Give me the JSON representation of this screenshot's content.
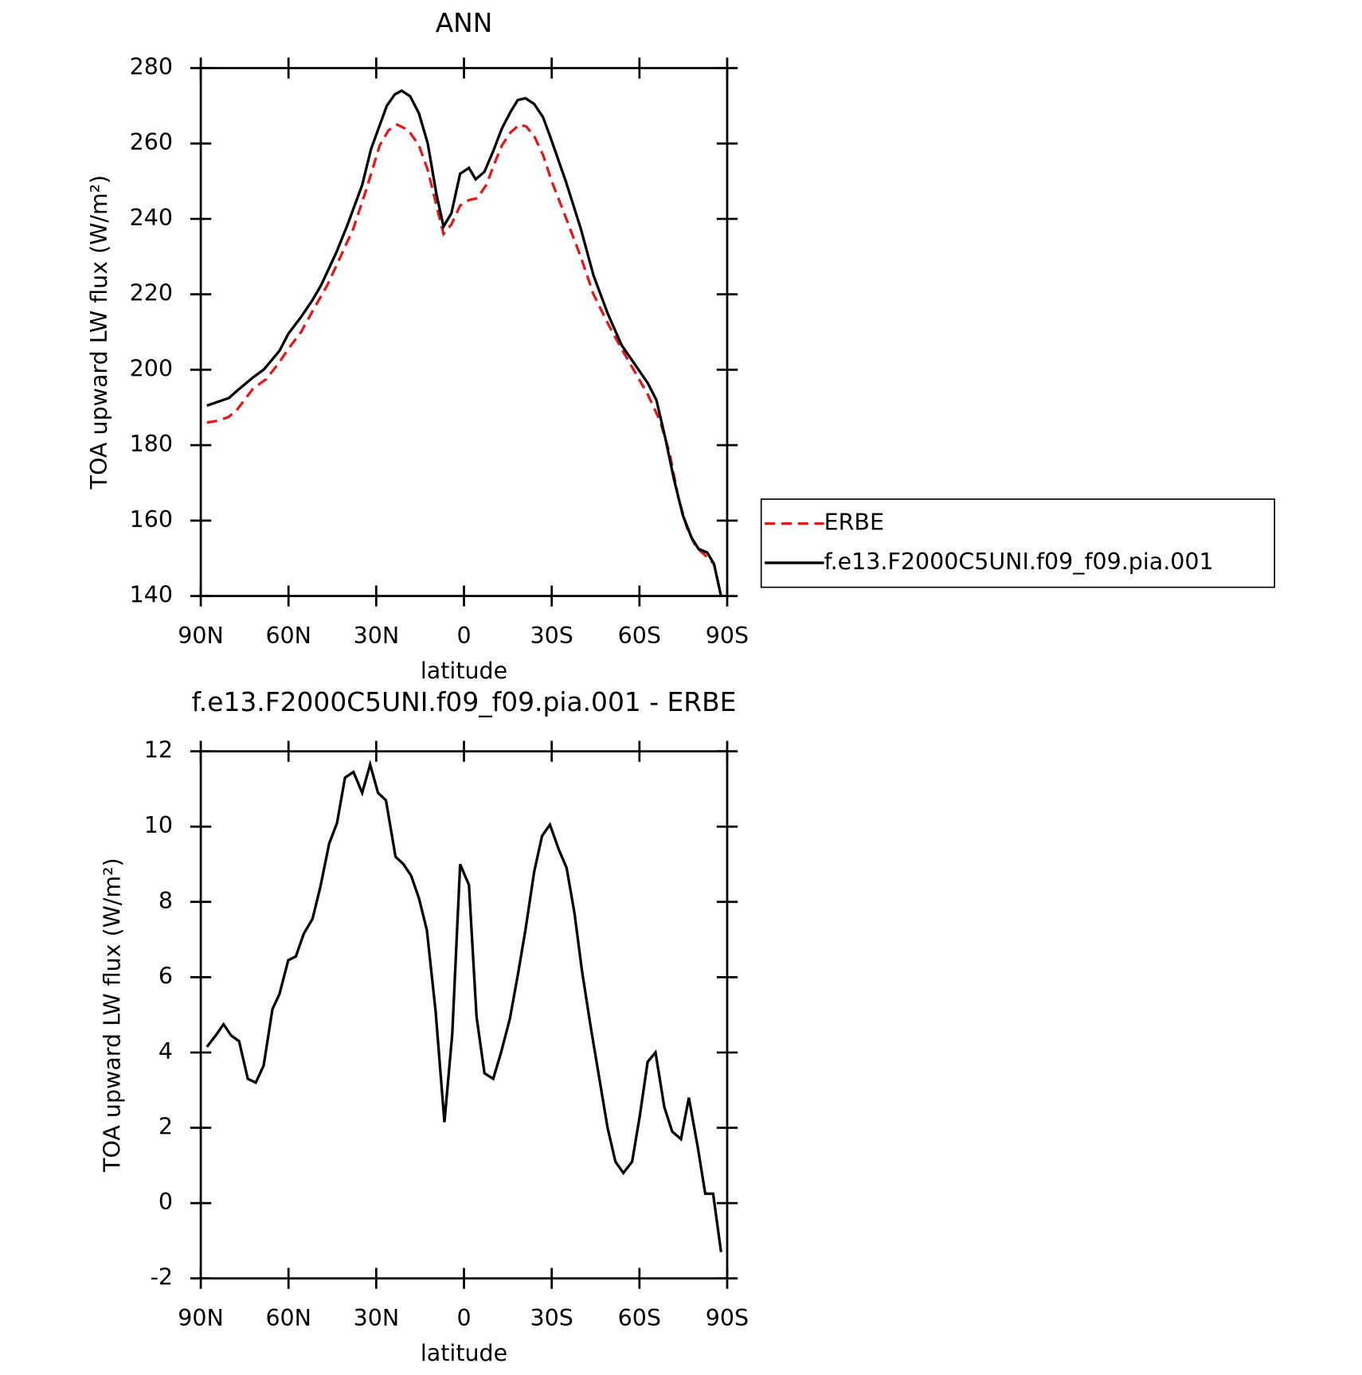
{
  "chart_data": [
    {
      "type": "line",
      "title": "ANN",
      "xlabel": "latitude",
      "ylabel": "TOA upward LW flux (W/m²)",
      "xlim": [
        90,
        -90
      ],
      "xticks": [
        {
          "value": 90,
          "label": "90N"
        },
        {
          "value": 60,
          "label": "60N"
        },
        {
          "value": 30,
          "label": "30N"
        },
        0,
        {
          "value": -30,
          "label": "30S"
        },
        {
          "value": -60,
          "label": "60S"
        },
        {
          "value": -90,
          "label": "90S"
        }
      ],
      "ylim": [
        140,
        280
      ],
      "yticks": [
        140,
        160,
        180,
        200,
        220,
        240,
        260,
        280
      ],
      "legend": "right",
      "series": [
        {
          "name": "ERBE",
          "color": "#e0191b",
          "dash": true,
          "x": [
            87.9,
            84.0,
            80.4,
            77.5,
            72.1,
            67.6,
            63.1,
            60.1,
            55.7,
            51.8,
            46.7,
            42.2,
            37.8,
            33.3,
            28.8,
            25.8,
            22.8,
            19.0,
            15.4,
            12.4,
            9.4,
            7.0,
            4.3,
            1.3,
            -1.7,
            -4.6,
            -7.6,
            -10.6,
            -13.0,
            -16.0,
            -19.0,
            -21.3,
            -24.0,
            -27.0,
            -30.0,
            -34.5,
            -39.9,
            -44.3,
            -49.4,
            -53.9,
            -58.4,
            -62.8,
            -67.0,
            -70.3,
            -73.3,
            -76.3,
            -79.3,
            -82.2,
            -85.5,
            -87.9
          ],
          "values": [
            186,
            186.5,
            187.5,
            189.5,
            195,
            197.5,
            202,
            205.5,
            210,
            215.5,
            222.5,
            230,
            237.5,
            248,
            259.5,
            263.5,
            265,
            263.5,
            259.5,
            253,
            243.5,
            236,
            238.5,
            243.5,
            245,
            245.5,
            249,
            255,
            259.5,
            263,
            265,
            264.5,
            262,
            257,
            250,
            241,
            230,
            220,
            212,
            205.5,
            199.5,
            193.5,
            186.5,
            178,
            166,
            158,
            153,
            151,
            148.5,
            140
          ]
        },
        {
          "name": "f.e13.F2000C5UNI.f09_f09.pia.001",
          "color": "#000000",
          "dash": false,
          "x": [
            87.9,
            80.4,
            77.5,
            72.1,
            68.5,
            63.1,
            60.1,
            55.7,
            51.8,
            48.8,
            43.7,
            39.8,
            34.8,
            31.8,
            26.4,
            23.7,
            21.3,
            18.4,
            15.4,
            12.4,
            9.4,
            7.0,
            4.3,
            1.3,
            -1.7,
            -4.0,
            -7.0,
            -10.0,
            -13.0,
            -16.0,
            -18.4,
            -21.0,
            -24.0,
            -27.0,
            -29.4,
            -34.8,
            -39.9,
            -44.3,
            -49.1,
            -53.9,
            -58.4,
            -62.8,
            -65.8,
            -68.8,
            -71.8,
            -74.8,
            -77.8,
            -80.2,
            -83.2,
            -85.5,
            -87.9
          ],
          "values": [
            190.5,
            192.5,
            194.5,
            198,
            200,
            205,
            209.5,
            214,
            218.5,
            222.5,
            231,
            238.5,
            249,
            258.5,
            270,
            273,
            274,
            272.5,
            268,
            260,
            246.5,
            238,
            241.5,
            252,
            253.5,
            250.5,
            252.5,
            258,
            264,
            268.5,
            271.5,
            272,
            270.5,
            267,
            262,
            250,
            237.5,
            225,
            215,
            206.5,
            201.5,
            196.5,
            192,
            182,
            171,
            161.5,
            155.5,
            152.5,
            151.5,
            148.5,
            140
          ]
        }
      ]
    },
    {
      "type": "line",
      "title": "f.e13.F2000C5UNI.f09_f09.pia.001 - ERBE",
      "xlabel": "latitude",
      "ylabel": "TOA upward LW flux (W/m²)",
      "xlim": [
        90,
        -90
      ],
      "xticks": [
        {
          "value": 90,
          "label": "90N"
        },
        {
          "value": 60,
          "label": "60N"
        },
        {
          "value": 30,
          "label": "30N"
        },
        0,
        {
          "value": -30,
          "label": "30S"
        },
        {
          "value": -60,
          "label": "60S"
        },
        {
          "value": -90,
          "label": "90S"
        }
      ],
      "ylim": [
        -2,
        12
      ],
      "yticks": [
        -2,
        0,
        2,
        4,
        6,
        8,
        10,
        12
      ],
      "series": [
        {
          "color": "#000000",
          "dash": false,
          "x": [
            87.9,
            84.9,
            82.2,
            79.6,
            76.9,
            73.9,
            71.2,
            68.5,
            65.5,
            63.1,
            60.1,
            57.5,
            54.8,
            51.8,
            49.1,
            46.1,
            43.4,
            40.7,
            37.8,
            34.8,
            32.1,
            29.4,
            26.7,
            23.4,
            20.7,
            18.1,
            15.4,
            12.7,
            9.7,
            6.7,
            4.0,
            1.3,
            -1.7,
            -4.3,
            -7.0,
            -10.0,
            -12.7,
            -15.7,
            -18.4,
            -21.0,
            -24.0,
            -26.7,
            -29.4,
            -32.4,
            -35.1,
            -37.8,
            -40.4,
            -43.4,
            -46.1,
            -49.1,
            -51.8,
            -54.5,
            -57.5,
            -60.1,
            -62.8,
            -65.5,
            -68.5,
            -71.2,
            -74.2,
            -76.9,
            -79.9,
            -82.5,
            -85.2,
            -87.9
          ],
          "values": [
            4.15,
            4.45,
            4.75,
            4.45,
            4.3,
            3.3,
            3.2,
            3.65,
            5.15,
            5.55,
            6.45,
            6.55,
            7.15,
            7.55,
            8.4,
            9.55,
            10.1,
            11.3,
            11.45,
            10.9,
            11.65,
            10.9,
            10.7,
            9.2,
            9.0,
            8.7,
            8.1,
            7.25,
            5.1,
            2.15,
            4.5,
            9.0,
            8.45,
            4.95,
            3.45,
            3.3,
            4.0,
            4.9,
            6.05,
            7.25,
            8.8,
            9.75,
            10.05,
            9.4,
            8.9,
            7.7,
            6.15,
            4.65,
            3.4,
            2.0,
            1.1,
            0.8,
            1.1,
            2.3,
            3.75,
            4.0,
            2.55,
            1.9,
            1.7,
            2.8,
            1.5,
            0.25,
            0.25,
            -1.3
          ]
        }
      ]
    }
  ]
}
